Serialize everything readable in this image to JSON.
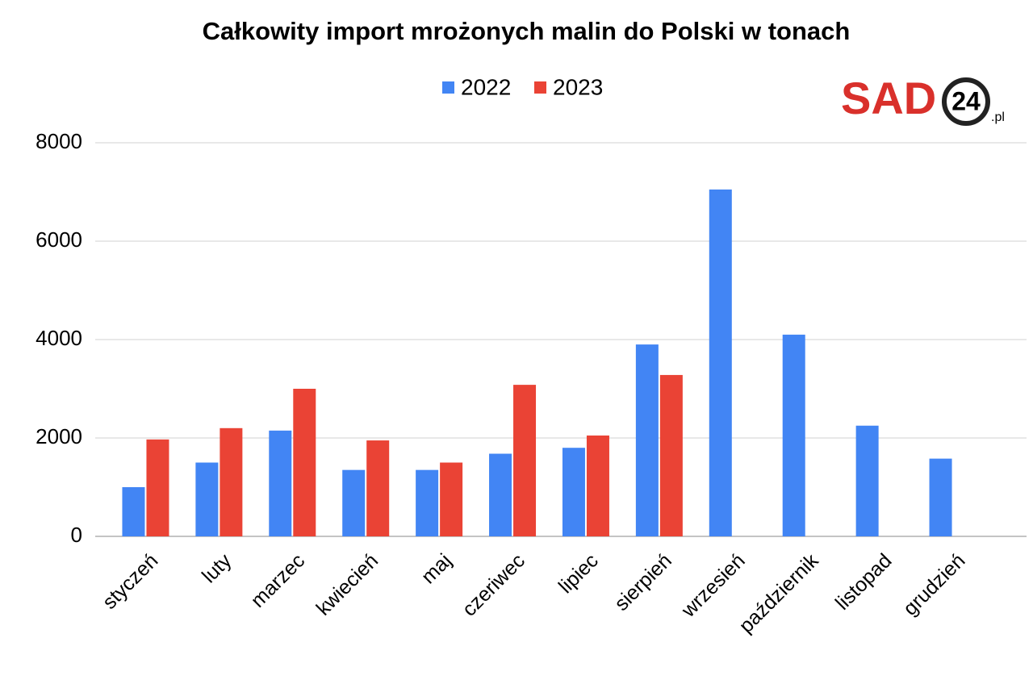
{
  "chart_data": {
    "type": "bar",
    "title": "Całkowity import mrożonych malin do Polski w tonach",
    "logo": {
      "main": "SAD",
      "number": "24",
      "suffix": ".pl"
    },
    "categories": [
      "styczeń",
      "luty",
      "marzec",
      "kwiecień",
      "maj",
      "czeriwec",
      "lipiec",
      "sierpień",
      "wrzesień",
      "październik",
      "listopad",
      "grudzień"
    ],
    "series": [
      {
        "name": "2022",
        "color": "#4285f4",
        "values": [
          1000,
          1500,
          2150,
          1350,
          1350,
          1680,
          1800,
          3900,
          7050,
          4100,
          2250,
          1580
        ]
      },
      {
        "name": "2023",
        "color": "#ea4335",
        "values": [
          1970,
          2200,
          3000,
          1950,
          1500,
          3080,
          2050,
          3280,
          null,
          null,
          null,
          null
        ]
      }
    ],
    "ylim": [
      0,
      8000
    ],
    "yticks": [
      0,
      2000,
      4000,
      6000,
      8000
    ],
    "grid": true
  }
}
